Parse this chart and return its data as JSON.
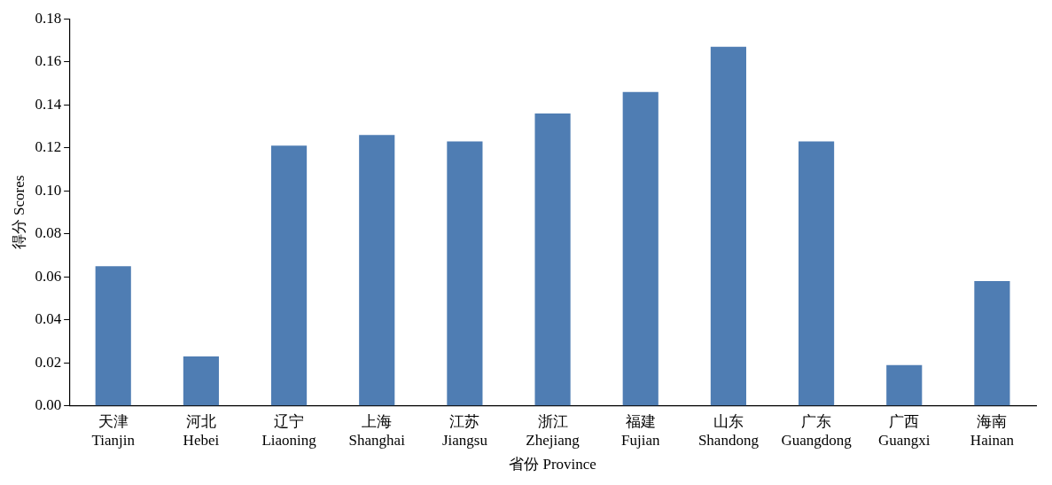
{
  "chart_data": {
    "type": "bar",
    "xlabel": "省份 Province",
    "ylabel": "得分 Scores",
    "categories": [
      "天津 Tianjin",
      "河北 Hebei",
      "辽宁 Liaoning",
      "上海 Shanghai",
      "江苏 Jiangsu",
      "浙江 Zhejiang",
      "福建 Fujian",
      "山东 Shandong",
      "广东 Guangdong",
      "广西 Guangxi",
      "海南 Hainan"
    ],
    "values": [
      0.065,
      0.023,
      0.121,
      0.126,
      0.123,
      0.136,
      0.146,
      0.167,
      0.123,
      0.019,
      0.058
    ],
    "color": "#4f7db3",
    "ylim": [
      0,
      0.18
    ],
    "yticks": [
      {
        "value": 0,
        "label": "0.00"
      },
      {
        "value": 0.02,
        "label": "0.02"
      },
      {
        "value": 0.04,
        "label": "0.04"
      },
      {
        "value": 0.06,
        "label": "0.06"
      },
      {
        "value": 0.08,
        "label": "0.08"
      },
      {
        "value": 0.1,
        "label": "0.10"
      },
      {
        "value": 0.12,
        "label": "0.12"
      },
      {
        "value": 0.14,
        "label": "0.14"
      },
      {
        "value": 0.16,
        "label": "0.16"
      },
      {
        "value": 0.18,
        "label": "0.18"
      }
    ],
    "grid": false,
    "legend": false
  }
}
